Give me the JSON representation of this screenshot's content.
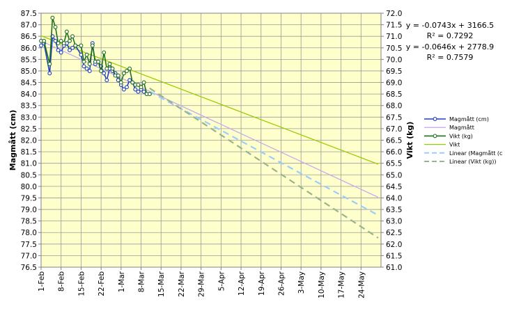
{
  "chart_data": {
    "type": "line",
    "x_categories": [
      "1-Feb",
      "8-Feb",
      "15-Feb",
      "22-Feb",
      "1-Mar",
      "8-Mar",
      "15-Mar",
      "22-Mar",
      "29-Mar",
      "5-Apr",
      "12-Apr",
      "19-Apr",
      "26-Apr",
      "3-May",
      "10-May",
      "17-May",
      "24-May"
    ],
    "x_range": [
      "1-Feb",
      "30-May"
    ],
    "ylabel_left": "Magmått (cm)",
    "ylabel_right": "Vikt (kg)",
    "ylim_left": [
      76.5,
      87.5
    ],
    "ylim_right": [
      61.0,
      72.0
    ],
    "yticks_left": [
      "76.5",
      "77.0",
      "77.5",
      "78.0",
      "78.5",
      "79.0",
      "79.5",
      "80.0",
      "80.5",
      "81.0",
      "81.5",
      "82.0",
      "82.5",
      "83.0",
      "83.5",
      "84.0",
      "84.5",
      "85.0",
      "85.5",
      "86.0",
      "86.5",
      "87.0",
      "87.5"
    ],
    "yticks_right": [
      "61.0",
      "61.5",
      "62.0",
      "62.5",
      "63.0",
      "63.5",
      "64.0",
      "64.5",
      "65.0",
      "65.5",
      "66.0",
      "66.5",
      "67.0",
      "67.5",
      "68.0",
      "68.5",
      "69.0",
      "69.5",
      "70.0",
      "70.5",
      "71.0",
      "71.5",
      "72.0"
    ],
    "grid": true,
    "plot_background": "#ffffcc",
    "legend_position": "right",
    "annotations": [
      {
        "line1": "y = -0.0743x + 3166.5",
        "line2": "R² = 0.7292"
      },
      {
        "line1": "y = -0.0646x + 2778.9",
        "line2": "R² = 0.7579"
      }
    ],
    "series": [
      {
        "name": "Magmått (cm)",
        "axis": "left",
        "color": "#1f3fbf",
        "style": "line-markers",
        "x": [
          0,
          1,
          3,
          4,
          5,
          6,
          7,
          8,
          9,
          10,
          11,
          12,
          14,
          15,
          16,
          17,
          18,
          19,
          20,
          21,
          22,
          23,
          24,
          25,
          26,
          27,
          28,
          29,
          30,
          31,
          32,
          33,
          34,
          35,
          36,
          37,
          38
        ],
        "y": [
          86.1,
          86.2,
          84.9,
          86.5,
          86.3,
          85.9,
          85.8,
          86.1,
          86.2,
          85.9,
          86.0,
          86.1,
          85.7,
          85.2,
          85.1,
          85.0,
          86.2,
          85.3,
          85.4,
          85.2,
          84.9,
          84.6,
          85.1,
          85.0,
          84.9,
          84.6,
          84.4,
          84.2,
          84.3,
          84.6,
          84.5,
          84.2,
          84.1,
          84.2,
          84.1,
          84.0,
          84.0
        ]
      },
      {
        "name": "Magmått",
        "axis": "left",
        "color": "#c8a8f0",
        "style": "trend-solid",
        "x": [
          0,
          118
        ],
        "y": [
          86.3,
          79.53
        ]
      },
      {
        "name": "Vikt (kg)",
        "axis": "right",
        "color": "#1e6e1e",
        "style": "line-markers",
        "x": [
          0,
          1,
          3,
          4,
          5,
          6,
          7,
          8,
          9,
          10,
          11,
          12,
          14,
          15,
          16,
          17,
          18,
          19,
          20,
          21,
          22,
          23,
          24,
          25,
          26,
          27,
          28,
          29,
          30,
          31,
          32,
          33,
          34,
          35,
          36,
          37,
          38
        ],
        "y": [
          70.8,
          70.8,
          69.8,
          71.8,
          71.4,
          70.7,
          70.8,
          70.7,
          71.2,
          70.8,
          71.0,
          70.6,
          70.6,
          69.9,
          70.2,
          69.8,
          70.6,
          69.9,
          69.9,
          69.5,
          70.3,
          69.6,
          69.8,
          69.6,
          69.3,
          69.3,
          69.0,
          69.4,
          69.5,
          69.6,
          69.0,
          68.9,
          68.9,
          68.8,
          69.0,
          68.5,
          68.5
        ]
      },
      {
        "name": "Vikt",
        "axis": "right",
        "color": "#99cc00",
        "style": "trend-solid",
        "x": [
          0,
          118
        ],
        "y": [
          71.02,
          65.46
        ]
      },
      {
        "name": "Linear (Magmått (c",
        "axis": "left",
        "color": "#99ccff",
        "style": "trend-dashed",
        "x": [
          38,
          118
        ],
        "y": [
          84.1,
          78.75
        ]
      },
      {
        "name": "Linear (Vikt (kg))",
        "axis": "right",
        "color": "#99b38c",
        "style": "trend-dashed",
        "x": [
          38,
          118
        ],
        "y": [
          68.75,
          62.27
        ]
      }
    ]
  }
}
